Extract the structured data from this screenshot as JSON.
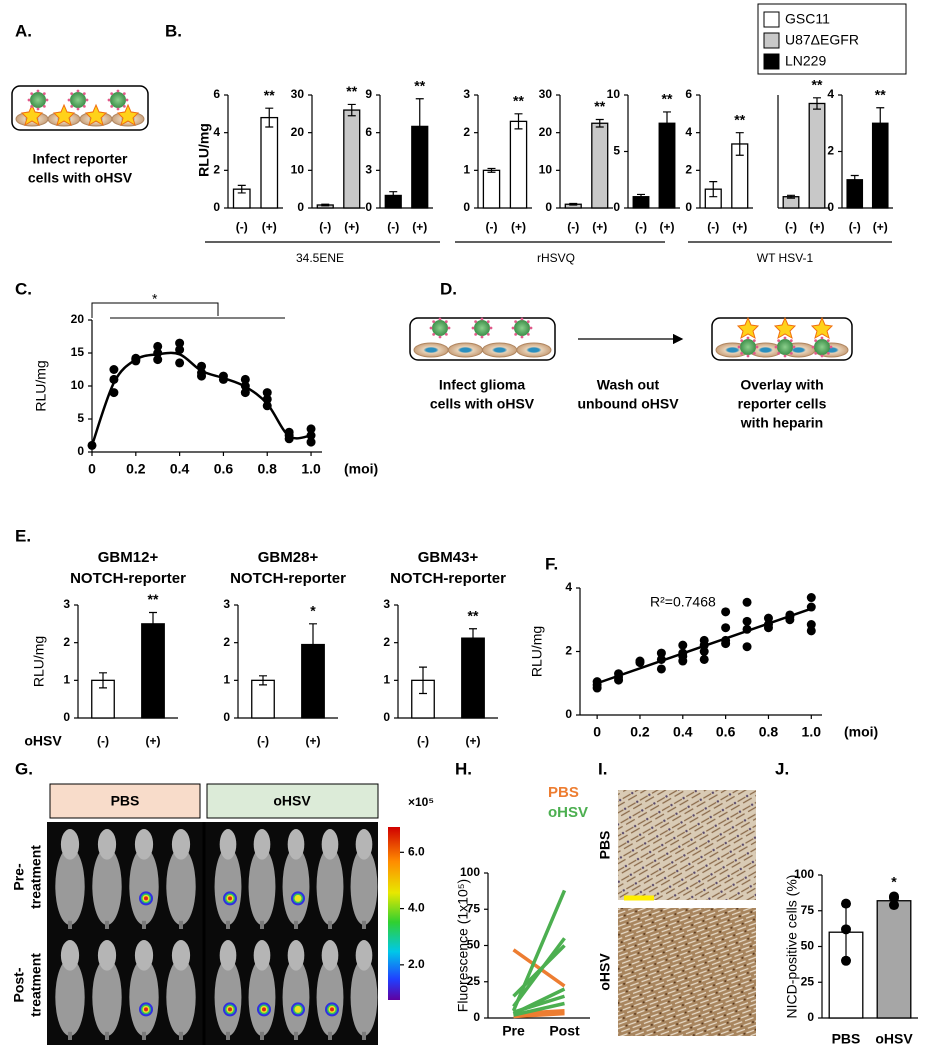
{
  "labels": [
    "A.",
    "B.",
    "C.",
    "D.",
    "E.",
    "F.",
    "G.",
    "H.",
    "I.",
    "J."
  ],
  "panel_a": {
    "caption": [
      "Infect reporter",
      "cells with oHSV"
    ]
  },
  "panel_b": {
    "y_label": "RLU/mg",
    "legend": [
      {
        "name": "GSC11",
        "color": "#ffffff"
      },
      {
        "name": "U87ΔEGFR",
        "color": "#c8c8c8"
      },
      {
        "name": "LN229",
        "color": "#000000"
      }
    ],
    "groups": [
      "34.5ENE",
      "rHSVQ",
      "WT HSV-1"
    ]
  },
  "panel_d": {
    "steps": [
      [
        "Infect glioma",
        "cells with oHSV"
      ],
      [
        "Wash out",
        "unbound oHSV"
      ],
      [
        "Overlay with",
        "reporter cells",
        "with heparin"
      ]
    ]
  },
  "panel_g": {
    "groups": [
      "PBS",
      "oHSV"
    ],
    "rows": [
      [
        "Pre-",
        "treatment"
      ],
      [
        "Post-",
        "treatment"
      ]
    ],
    "colorbar": {
      "unit": "×10⁵",
      "lim": [
        0.75,
        6.9
      ],
      "ticks": [
        {
          "value": 2,
          "label": "2.0"
        },
        {
          "value": 4,
          "label": "4.0"
        },
        {
          "value": 6,
          "label": "6.0"
        }
      ]
    }
  },
  "panel_i": {
    "rows": [
      "PBS",
      "oHSV"
    ]
  },
  "chart_data": [
    {
      "type": "bar",
      "categories": [
        "(-)",
        "(+)"
      ],
      "values": [
        1,
        4.8
      ],
      "errors": [
        0.2,
        0.5
      ],
      "color": "#ffffff",
      "ylim": [
        0,
        6
      ],
      "yticks": [
        0,
        2,
        4,
        6
      ],
      "annotation": "**"
    },
    {
      "type": "bar",
      "categories": [
        "(-)",
        "(+)"
      ],
      "values": [
        0.8,
        26
      ],
      "errors": [
        0.2,
        1.5
      ],
      "color": "#c8c8c8",
      "ylim": [
        0,
        30
      ],
      "yticks": [
        0,
        10,
        20,
        30
      ],
      "annotation": "**"
    },
    {
      "type": "bar",
      "categories": [
        "(-)",
        "(+)"
      ],
      "values": [
        1,
        6.5
      ],
      "errors": [
        0.3,
        2.2
      ],
      "color": "#000000",
      "ylim": [
        0,
        9
      ],
      "yticks": [
        0,
        3,
        6,
        9
      ],
      "annotation": "**"
    },
    {
      "type": "bar",
      "categories": [
        "(-)",
        "(+)"
      ],
      "values": [
        1,
        2.3
      ],
      "errors": [
        0.05,
        0.2
      ],
      "color": "#ffffff",
      "ylim": [
        0,
        3
      ],
      "yticks": [
        0,
        1,
        2,
        3
      ],
      "annotation": "**"
    },
    {
      "type": "bar",
      "categories": [
        "(-)",
        "(+)"
      ],
      "values": [
        1,
        22.5
      ],
      "errors": [
        0.2,
        1
      ],
      "color": "#c8c8c8",
      "ylim": [
        0,
        30
      ],
      "yticks": [
        0,
        10,
        20,
        30
      ],
      "annotation": "**"
    },
    {
      "type": "bar",
      "categories": [
        "(-)",
        "(+)"
      ],
      "values": [
        1,
        7.5
      ],
      "errors": [
        0.2,
        1
      ],
      "color": "#000000",
      "ylim": [
        0,
        10
      ],
      "yticks": [
        0,
        5,
        10
      ],
      "annotation": "**"
    },
    {
      "type": "bar",
      "categories": [
        "(-)",
        "(+)"
      ],
      "values": [
        1,
        3.4
      ],
      "errors": [
        0.4,
        0.6
      ],
      "color": "#ffffff",
      "ylim": [
        0,
        6
      ],
      "yticks": [
        0,
        2,
        4,
        6
      ],
      "annotation": "**"
    },
    {
      "type": "bar",
      "categories": [
        "(-)",
        "(+)"
      ],
      "values": [
        0.8,
        7.4
      ],
      "errors": [
        0.1,
        0.4
      ],
      "color": "#c8c8c8",
      "ylim": [
        0,
        8
      ],
      "annotation": "**"
    },
    {
      "type": "bar",
      "categories": [
        "(-)",
        "(+)"
      ],
      "values": [
        1,
        3
      ],
      "errors": [
        0.15,
        0.55
      ],
      "color": "#000000",
      "ylim": [
        0,
        4
      ],
      "yticks": [
        0,
        2,
        4
      ],
      "annotation": "**"
    },
    {
      "type": "scatter",
      "y_label": "RLU/mg",
      "x_unit": "(moi)",
      "annotation": "*",
      "x": [
        0,
        0.1,
        0.1,
        0.1,
        0.2,
        0.2,
        0.2,
        0.3,
        0.3,
        0.3,
        0.4,
        0.4,
        0.4,
        0.5,
        0.5,
        0.5,
        0.6,
        0.6,
        0.7,
        0.7,
        0.7,
        0.8,
        0.8,
        0.8,
        0.9,
        0.9,
        0.9,
        1.0,
        1.0,
        1.0
      ],
      "y": [
        1,
        9,
        11,
        12.5,
        14,
        14.2,
        13.8,
        14,
        15,
        16,
        13.5,
        15.5,
        16.5,
        11.5,
        12,
        13,
        11,
        11.5,
        9,
        10,
        11,
        7,
        8,
        9,
        2,
        2.5,
        3,
        1.5,
        2.5,
        3.5
      ],
      "fit": {
        "x": [
          0,
          0.1,
          0.2,
          0.3,
          0.4,
          0.5,
          0.6,
          0.7,
          0.8,
          0.9,
          1.0
        ],
        "y": [
          1,
          10.5,
          14,
          14.8,
          14.8,
          12.3,
          11.2,
          9.9,
          7.3,
          2.4,
          2.5
        ]
      },
      "xlim": [
        0,
        1.05
      ],
      "xticks": [
        0,
        0.2,
        0.4,
        0.6,
        0.8,
        {
          "value": 1,
          "label": "1.0"
        }
      ],
      "ylim": [
        0,
        20
      ],
      "yticks": [
        0,
        5,
        10,
        15,
        20
      ]
    },
    {
      "type": "bar",
      "title": [
        "GBM12+",
        "NOTCH-reporter"
      ],
      "y_label": "RLU/mg",
      "row_label": "oHSV",
      "categories": [
        "(-)",
        "(+)"
      ],
      "values": [
        1,
        2.5
      ],
      "errors": [
        0.2,
        0.3
      ],
      "colors": [
        "#ffffff",
        "#000000"
      ],
      "ylim": [
        0,
        3
      ],
      "yticks": [
        0,
        1,
        2,
        3
      ],
      "annotation": "**"
    },
    {
      "type": "bar",
      "title": [
        "GBM28+",
        "NOTCH-reporter"
      ],
      "categories": [
        "(-)",
        "(+)"
      ],
      "values": [
        1,
        1.95
      ],
      "errors": [
        0.12,
        0.55
      ],
      "colors": [
        "#ffffff",
        "#000000"
      ],
      "ylim": [
        0,
        3
      ],
      "yticks": [
        0,
        1,
        2,
        3
      ],
      "annotation": "*"
    },
    {
      "type": "bar",
      "title": [
        "GBM43+",
        "NOTCH-reporter"
      ],
      "categories": [
        "(-)",
        "(+)"
      ],
      "values": [
        1,
        2.12
      ],
      "errors": [
        0.35,
        0.25
      ],
      "colors": [
        "#ffffff",
        "#000000"
      ],
      "ylim": [
        0,
        3
      ],
      "yticks": [
        0,
        1,
        2,
        3
      ],
      "annotation": "**"
    },
    {
      "type": "scatter",
      "y_label": "RLU/mg",
      "x_unit": "(moi)",
      "annotation": "R²=0.7468",
      "x": [
        0,
        0,
        0,
        0.1,
        0.1,
        0.1,
        0.2,
        0.2,
        0.3,
        0.3,
        0.3,
        0.4,
        0.4,
        0.4,
        0.4,
        0.5,
        0.5,
        0.5,
        0.5,
        0.6,
        0.6,
        0.6,
        0.6,
        0.7,
        0.7,
        0.7,
        0.7,
        0.8,
        0.8,
        0.8,
        0.9,
        0.9,
        0.9,
        1.0,
        1.0,
        1.0,
        1.0
      ],
      "y": [
        1.05,
        0.95,
        0.85,
        1.3,
        1.2,
        1.1,
        1.7,
        1.65,
        1.95,
        1.75,
        1.45,
        2.2,
        1.95,
        1.85,
        1.7,
        2.35,
        2.2,
        2.0,
        1.75,
        3.25,
        2.75,
        2.35,
        2.25,
        3.55,
        2.95,
        2.7,
        2.15,
        3.05,
        2.85,
        2.75,
        3.15,
        3.1,
        3.0,
        3.7,
        3.4,
        2.85,
        2.65
      ],
      "fit": {
        "x": [
          0,
          1.0
        ],
        "y": [
          1.0,
          3.35
        ]
      },
      "xlim": [
        -0.08,
        1.05
      ],
      "xticks": [
        0,
        0.2,
        0.4,
        0.6,
        0.8,
        {
          "value": 1,
          "label": "1.0"
        }
      ],
      "ylim": [
        0,
        4
      ],
      "yticks": [
        0,
        2,
        4
      ]
    },
    {
      "type": "line",
      "y_label": "Fluorescence (1x10⁵)",
      "categories": [
        "Pre",
        "Post"
      ],
      "ylim": [
        0,
        100
      ],
      "yticks": [
        0,
        25,
        50,
        75,
        100
      ],
      "series": [
        {
          "name": "PBS",
          "color": "#ed7d31",
          "lines": [
            [
              47,
              22
            ],
            [
              3,
              5
            ],
            [
              2,
              4
            ],
            [
              1,
              3
            ]
          ]
        },
        {
          "name": "oHSV",
          "color": "#4caf50",
          "lines": [
            [
              5,
              88
            ],
            [
              8,
              55
            ],
            [
              15,
              50
            ],
            [
              3,
              20
            ],
            [
              4,
              15
            ],
            [
              2,
              10
            ]
          ]
        }
      ]
    },
    {
      "type": "bar",
      "y_label": "NICD-positive cells (%)",
      "categories": [
        "PBS",
        "oHSV"
      ],
      "values": [
        60,
        82
      ],
      "errors": [
        18,
        4
      ],
      "points": [
        [
          80,
          62,
          40
        ],
        [
          79,
          84,
          85
        ]
      ],
      "colors": [
        "#ffffff",
        "#a6a6a6"
      ],
      "ylim": [
        0,
        100
      ],
      "yticks": [
        0,
        25,
        50,
        75,
        100
      ],
      "annotation": "*"
    }
  ]
}
